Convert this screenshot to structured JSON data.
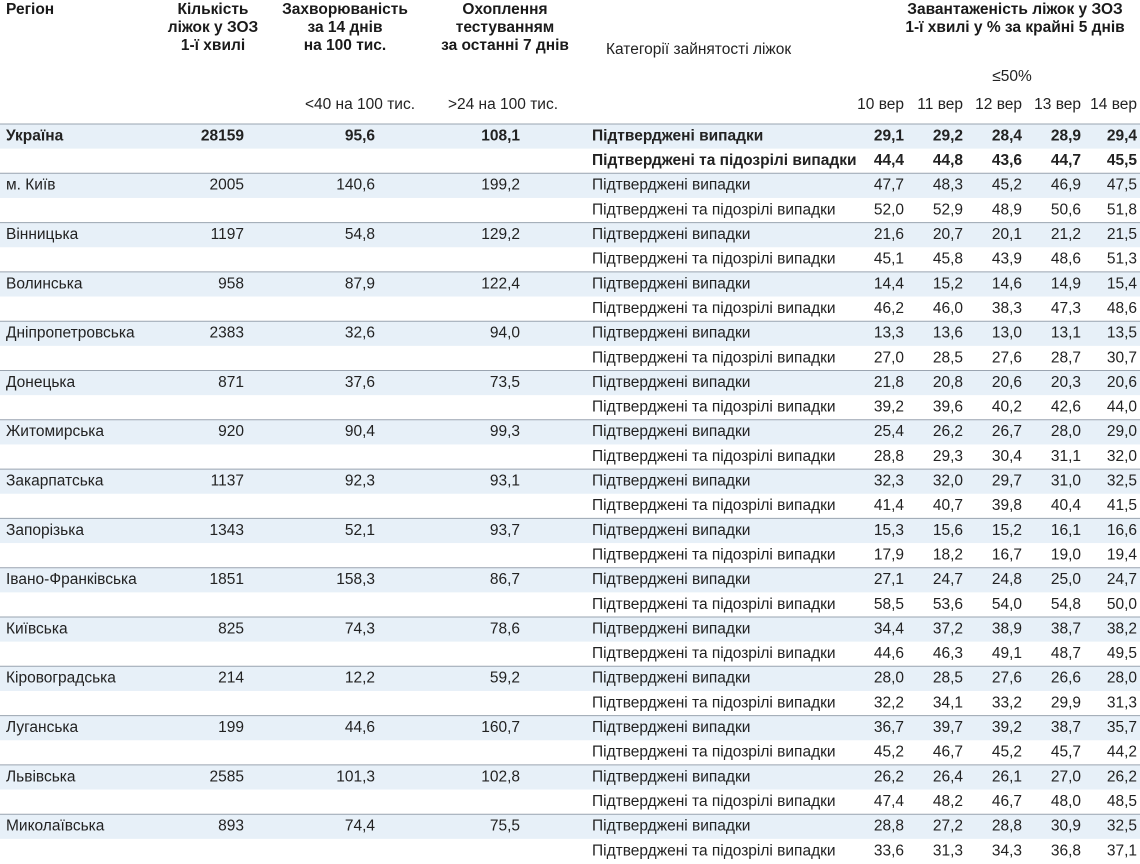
{
  "header": {
    "region": "Регіон",
    "beds": [
      "Кількість",
      "ліжок у ЗОЗ",
      "1-ї хвилі"
    ],
    "incidence": [
      "Захворюваність",
      "за 14 днів",
      "на 100 тис."
    ],
    "testing": [
      "Охоплення",
      "тестуванням",
      "за останні 7 днів"
    ],
    "category": "Категорії зайнятості ліжок",
    "load": [
      "Завантаженість ліжок у ЗОЗ",
      "1-ї хвилі у % за крайні 5 днів"
    ],
    "threshold": "≤50%",
    "incidence_threshold": "<40 на 100 тис.",
    "testing_threshold": ">24 на 100 тис.",
    "days": [
      "10 вер",
      "11 вер",
      "12 вер",
      "13 вер",
      "14 вер"
    ]
  },
  "categories": [
    "Підтверджені випадки",
    "Підтверджені та підозрілі випадки"
  ],
  "palette": {
    "g": "#3d8a58",
    "r": "#c23a52"
  },
  "rows": [
    {
      "name": "Україна",
      "beds": "28159",
      "incidence": "95,6",
      "incidence_color": "r",
      "testing": "108,1",
      "days": [
        [
          "29,1",
          "29,2",
          "28,4",
          "28,9",
          "29,4"
        ],
        [
          "44,4",
          "44,8",
          "43,6",
          "44,7",
          "45,5"
        ]
      ],
      "day_colors": [
        "ggggg",
        "ggggg"
      ]
    },
    {
      "name": "м. Київ",
      "beds": "2005",
      "incidence": "140,6",
      "incidence_color": "r",
      "testing": "199,2",
      "days": [
        [
          "47,7",
          "48,3",
          "45,2",
          "46,9",
          "47,5"
        ],
        [
          "52,0",
          "52,9",
          "48,9",
          "50,6",
          "51,8"
        ]
      ],
      "day_colors": [
        "ggggg",
        "rrgrr"
      ]
    },
    {
      "name": "Вінницька",
      "beds": "1197",
      "incidence": "54,8",
      "incidence_color": "r",
      "testing": "129,2",
      "days": [
        [
          "21,6",
          "20,7",
          "20,1",
          "21,2",
          "21,5"
        ],
        [
          "45,1",
          "45,8",
          "43,9",
          "48,6",
          "51,3"
        ]
      ],
      "day_colors": [
        "ggggg",
        "ggggr"
      ]
    },
    {
      "name": "Волинська",
      "beds": "958",
      "incidence": "87,9",
      "incidence_color": "r",
      "testing": "122,4",
      "days": [
        [
          "14,4",
          "15,2",
          "14,6",
          "14,9",
          "15,4"
        ],
        [
          "46,2",
          "46,0",
          "38,3",
          "47,3",
          "48,6"
        ]
      ],
      "day_colors": [
        "ggggg",
        "ggggg"
      ]
    },
    {
      "name": "Дніпропетровська",
      "beds": "2383",
      "incidence": "32,6",
      "incidence_color": "g",
      "testing": "94,0",
      "days": [
        [
          "13,3",
          "13,6",
          "13,0",
          "13,1",
          "13,5"
        ],
        [
          "27,0",
          "28,5",
          "27,6",
          "28,7",
          "30,7"
        ]
      ],
      "day_colors": [
        "ggggg",
        "ggggg"
      ]
    },
    {
      "name": "Донецька",
      "beds": "871",
      "incidence": "37,6",
      "incidence_color": "g",
      "testing": "73,5",
      "days": [
        [
          "21,8",
          "20,8",
          "20,6",
          "20,3",
          "20,6"
        ],
        [
          "39,2",
          "39,6",
          "40,2",
          "42,6",
          "44,0"
        ]
      ],
      "day_colors": [
        "ggggg",
        "ggggg"
      ]
    },
    {
      "name": "Житомирська",
      "beds": "920",
      "incidence": "90,4",
      "incidence_color": "r",
      "testing": "99,3",
      "days": [
        [
          "25,4",
          "26,2",
          "26,7",
          "28,0",
          "29,0"
        ],
        [
          "28,8",
          "29,3",
          "30,4",
          "31,1",
          "32,0"
        ]
      ],
      "day_colors": [
        "ggggg",
        "ggggg"
      ]
    },
    {
      "name": "Закарпатська",
      "beds": "1137",
      "incidence": "92,3",
      "incidence_color": "r",
      "testing": "93,1",
      "days": [
        [
          "32,3",
          "32,0",
          "29,7",
          "31,0",
          "32,5"
        ],
        [
          "41,4",
          "40,7",
          "39,8",
          "40,4",
          "41,5"
        ]
      ],
      "day_colors": [
        "ggggg",
        "ggggg"
      ]
    },
    {
      "name": "Запорізька",
      "beds": "1343",
      "incidence": "52,1",
      "incidence_color": "r",
      "testing": "93,7",
      "days": [
        [
          "15,3",
          "15,6",
          "15,2",
          "16,1",
          "16,6"
        ],
        [
          "17,9",
          "18,2",
          "16,7",
          "19,0",
          "19,4"
        ]
      ],
      "day_colors": [
        "ggggg",
        "ggggg"
      ]
    },
    {
      "name": "Івано-Франківська",
      "beds": "1851",
      "incidence": "158,3",
      "incidence_color": "r",
      "testing": "86,7",
      "days": [
        [
          "27,1",
          "24,7",
          "24,8",
          "25,0",
          "24,7"
        ],
        [
          "58,5",
          "53,6",
          "54,0",
          "54,8",
          "50,0"
        ]
      ],
      "day_colors": [
        "ggggg",
        "rrrrg"
      ]
    },
    {
      "name": "Київська",
      "beds": "825",
      "incidence": "74,3",
      "incidence_color": "r",
      "testing": "78,6",
      "days": [
        [
          "34,4",
          "37,2",
          "38,9",
          "38,7",
          "38,2"
        ],
        [
          "44,6",
          "46,3",
          "49,1",
          "48,7",
          "49,5"
        ]
      ],
      "day_colors": [
        "ggggg",
        "ggggg"
      ]
    },
    {
      "name": "Кіровоградська",
      "beds": "214",
      "incidence": "12,2",
      "incidence_color": "g",
      "testing": "59,2",
      "days": [
        [
          "28,0",
          "28,5",
          "27,6",
          "26,6",
          "28,0"
        ],
        [
          "32,2",
          "34,1",
          "33,2",
          "29,9",
          "31,3"
        ]
      ],
      "day_colors": [
        "ggggg",
        "ggggg"
      ]
    },
    {
      "name": "Луганська",
      "beds": "199",
      "incidence": "44,6",
      "incidence_color": "r",
      "testing": "160,7",
      "days": [
        [
          "36,7",
          "39,7",
          "39,2",
          "38,7",
          "35,7"
        ],
        [
          "45,2",
          "46,7",
          "45,2",
          "45,7",
          "44,2"
        ]
      ],
      "day_colors": [
        "ggggg",
        "ggggg"
      ]
    },
    {
      "name": "Львівська",
      "beds": "2585",
      "incidence": "101,3",
      "incidence_color": "r",
      "testing": "102,8",
      "days": [
        [
          "26,2",
          "26,4",
          "26,1",
          "27,0",
          "26,2"
        ],
        [
          "47,4",
          "48,2",
          "46,7",
          "48,0",
          "48,5"
        ]
      ],
      "day_colors": [
        "ggggg",
        "ggggg"
      ]
    },
    {
      "name": "Миколаївська",
      "beds": "893",
      "incidence": "74,4",
      "incidence_color": "r",
      "testing": "75,5",
      "days": [
        [
          "28,8",
          "27,2",
          "28,8",
          "30,9",
          "32,5"
        ],
        [
          "33,6",
          "31,3",
          "34,3",
          "36,8",
          "37,1"
        ]
      ],
      "day_colors": [
        "ggggg",
        "ggggg"
      ]
    }
  ]
}
